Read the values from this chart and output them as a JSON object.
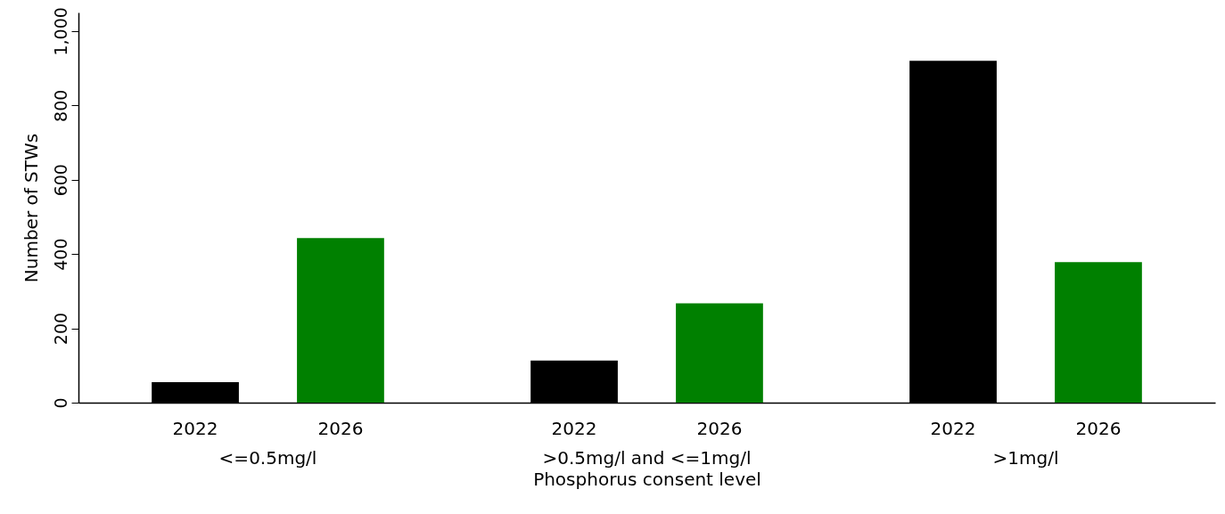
{
  "chart_data": {
    "type": "bar",
    "xlabel": "Phosphorus consent level",
    "ylabel": "Number of STWs",
    "categories": [
      "<=0.5mg/l",
      ">0.5mg/l and <=1mg/l",
      ">1mg/l"
    ],
    "series": [
      {
        "name": "2022",
        "color": "#000000",
        "values": [
          55,
          113,
          920
        ]
      },
      {
        "name": "2026",
        "color": "#008000",
        "values": [
          443,
          267,
          378
        ]
      }
    ],
    "ylim": [
      0,
      1050
    ],
    "yticks": [
      0,
      200,
      400,
      600,
      800,
      {
        "value": 1000,
        "label": "1,000"
      }
    ],
    "grid": false
  }
}
